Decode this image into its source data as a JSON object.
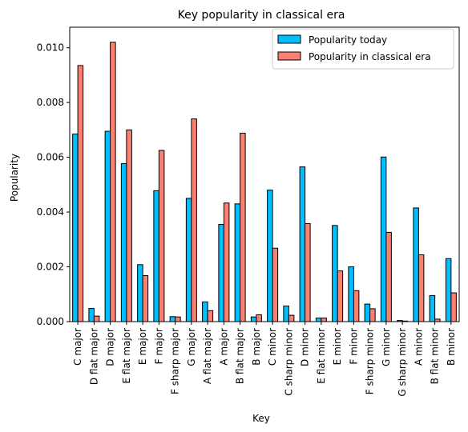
{
  "chart_data": {
    "type": "bar",
    "title": "Key popularity in classical era",
    "xlabel": "Key",
    "ylabel": "Popularity",
    "ylim": [
      0,
      0.01075
    ],
    "yticks": [
      0.0,
      0.002,
      0.004,
      0.006,
      0.008,
      0.01
    ],
    "ytick_labels": [
      "0.000",
      "0.002",
      "0.004",
      "0.006",
      "0.008",
      "0.010"
    ],
    "legend_position": "top-right",
    "categories": [
      "C major",
      "D flat major",
      "D major",
      "E flat major",
      "E major",
      "F major",
      "F sharp major",
      "G major",
      "A flat major",
      "A major",
      "B flat major",
      "B major",
      "C minor",
      "C sharp minor",
      "D minor",
      "E flat minor",
      "E minor",
      "F minor",
      "F sharp minor",
      "G minor",
      "G sharp minor",
      "A minor",
      "B flat minor",
      "B minor"
    ],
    "series": [
      {
        "name": "Popularity today",
        "color": "#00bfff",
        "values": [
          0.00685,
          0.00048,
          0.00695,
          0.00577,
          0.00208,
          0.00478,
          0.00018,
          0.0045,
          0.00072,
          0.00355,
          0.0043,
          0.00017,
          0.0048,
          0.00057,
          0.00565,
          0.00013,
          0.00351,
          0.002,
          0.00064,
          0.00601,
          4e-05,
          0.00415,
          0.00095,
          0.0023
        ]
      },
      {
        "name": "Popularity in classical era",
        "color": "#fa8072",
        "values": [
          0.00935,
          0.0002,
          0.0102,
          0.007,
          0.00168,
          0.00625,
          0.00017,
          0.0074,
          0.0004,
          0.00433,
          0.00688,
          0.00025,
          0.00268,
          0.00023,
          0.00358,
          0.00013,
          0.00185,
          0.00113,
          0.00047,
          0.00326,
          2e-05,
          0.00244,
          9e-05,
          0.00105
        ]
      }
    ]
  }
}
